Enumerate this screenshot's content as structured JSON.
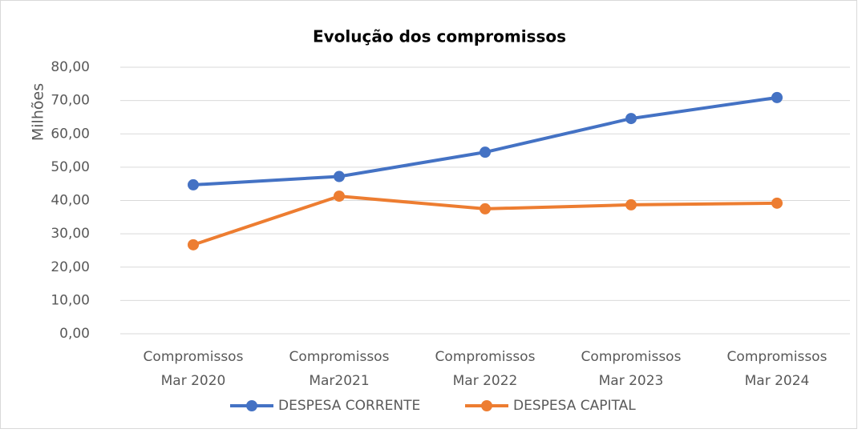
{
  "chart_data": {
    "type": "line",
    "title": "Evolução dos compromissos",
    "y_label": "Milhões",
    "categories": [
      "Compromissos\nMar 2020",
      "Compromissos\nMar2021",
      "Compromissos\nMar 2022",
      "Compromissos\nMar 2023",
      "Compromissos\nMar 2024"
    ],
    "series": [
      {
        "name": "DESPESA CORRENTE",
        "color": "#4472c4",
        "values": [
          44.7,
          47.2,
          54.5,
          64.6,
          70.9
        ]
      },
      {
        "name": "DESPESA CAPITAL",
        "color": "#ed7d31",
        "values": [
          26.7,
          41.3,
          37.5,
          38.7,
          39.2
        ]
      }
    ],
    "ylim": [
      0,
      80
    ],
    "yticks": [
      {
        "value": 0,
        "label": "0,00"
      },
      {
        "value": 10,
        "label": "10,00"
      },
      {
        "value": 20,
        "label": "20,00"
      },
      {
        "value": 30,
        "label": "30,00"
      },
      {
        "value": 40,
        "label": "40,00"
      },
      {
        "value": 50,
        "label": "50,00"
      },
      {
        "value": 60,
        "label": "60,00"
      },
      {
        "value": 70,
        "label": "70,00"
      },
      {
        "value": 80,
        "label": "80,00"
      }
    ],
    "grid": true,
    "legend": "bottom"
  }
}
